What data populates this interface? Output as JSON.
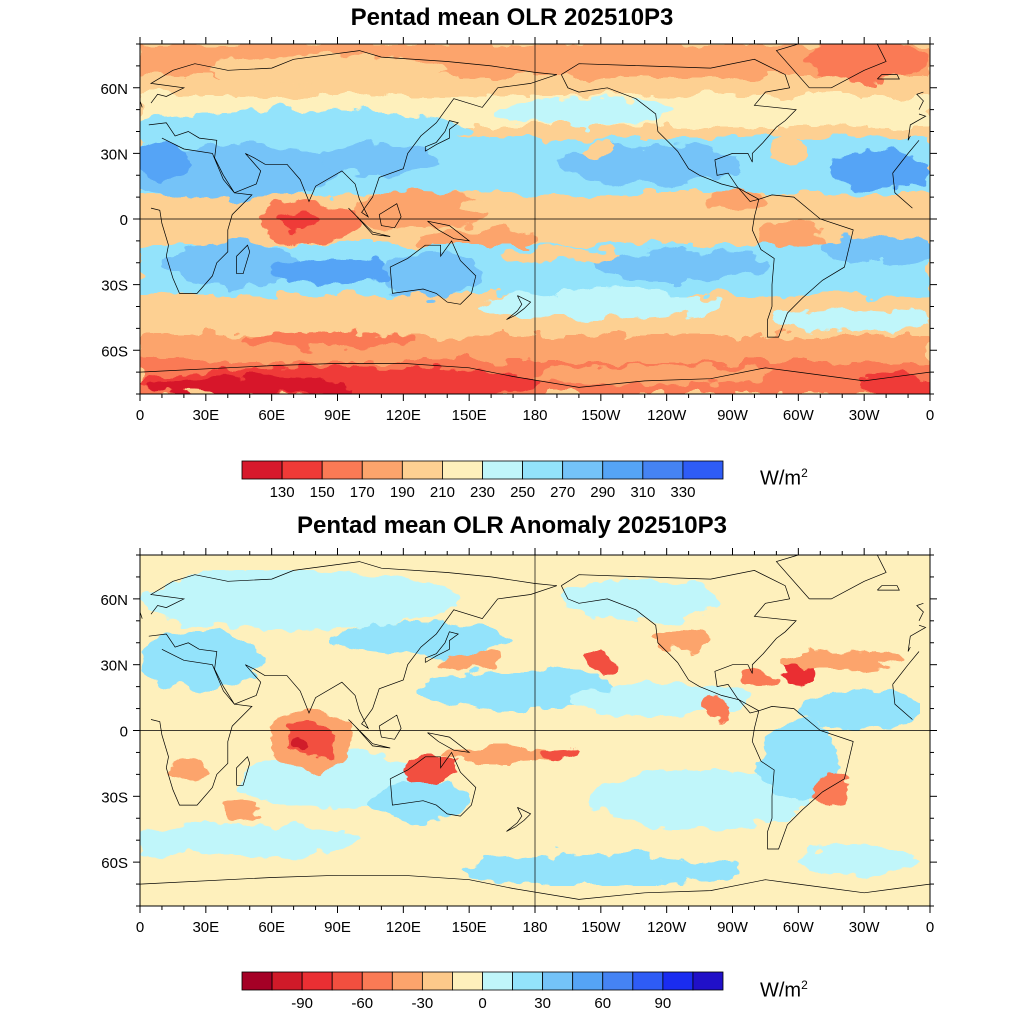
{
  "panel1": {
    "title": "Pentad mean OLR 202510P3",
    "units": "W/m",
    "units_sup": "2",
    "lat_labels": [
      "60N",
      "30N",
      "0",
      "30S",
      "60S"
    ],
    "lon_labels": [
      "0",
      "30E",
      "60E",
      "90E",
      "120E",
      "150E",
      "180",
      "150W",
      "120W",
      "90W",
      "60W",
      "30W",
      "0"
    ],
    "colorbar_labels": [
      "130",
      "150",
      "170",
      "190",
      "210",
      "230",
      "250",
      "270",
      "290",
      "310",
      "330"
    ],
    "colorbar_colors": [
      "#d7192c",
      "#ef3a37",
      "#fa7a55",
      "#fca46c",
      "#fdd092",
      "#fef0bc",
      "#c0f6fa",
      "#93e3fb",
      "#74c3f8",
      "#55a4f6",
      "#4583f3",
      "#2e5cf6"
    ]
  },
  "panel2": {
    "title": "Pentad mean OLR Anomaly 202510P3",
    "units": "W/m",
    "units_sup": "2",
    "lat_labels": [
      "60N",
      "30N",
      "0",
      "30S",
      "60S"
    ],
    "lon_labels": [
      "0",
      "30E",
      "60E",
      "90E",
      "120E",
      "150E",
      "180",
      "150W",
      "120W",
      "90W",
      "60W",
      "30W",
      "0"
    ],
    "colorbar_labels": [
      "-90",
      "-60",
      "-30",
      "0",
      "30",
      "60",
      "90"
    ],
    "colorbar_colors": [
      "#a50026",
      "#d01a29",
      "#ea2f33",
      "#f24f3f",
      "#fa7a55",
      "#fca46c",
      "#fdc98a",
      "#fef0bc",
      "#c0f6fa",
      "#93e3fb",
      "#74c3f8",
      "#55a4f6",
      "#4583f3",
      "#2e5cf6",
      "#1a2cf0",
      "#2010c8"
    ]
  }
}
